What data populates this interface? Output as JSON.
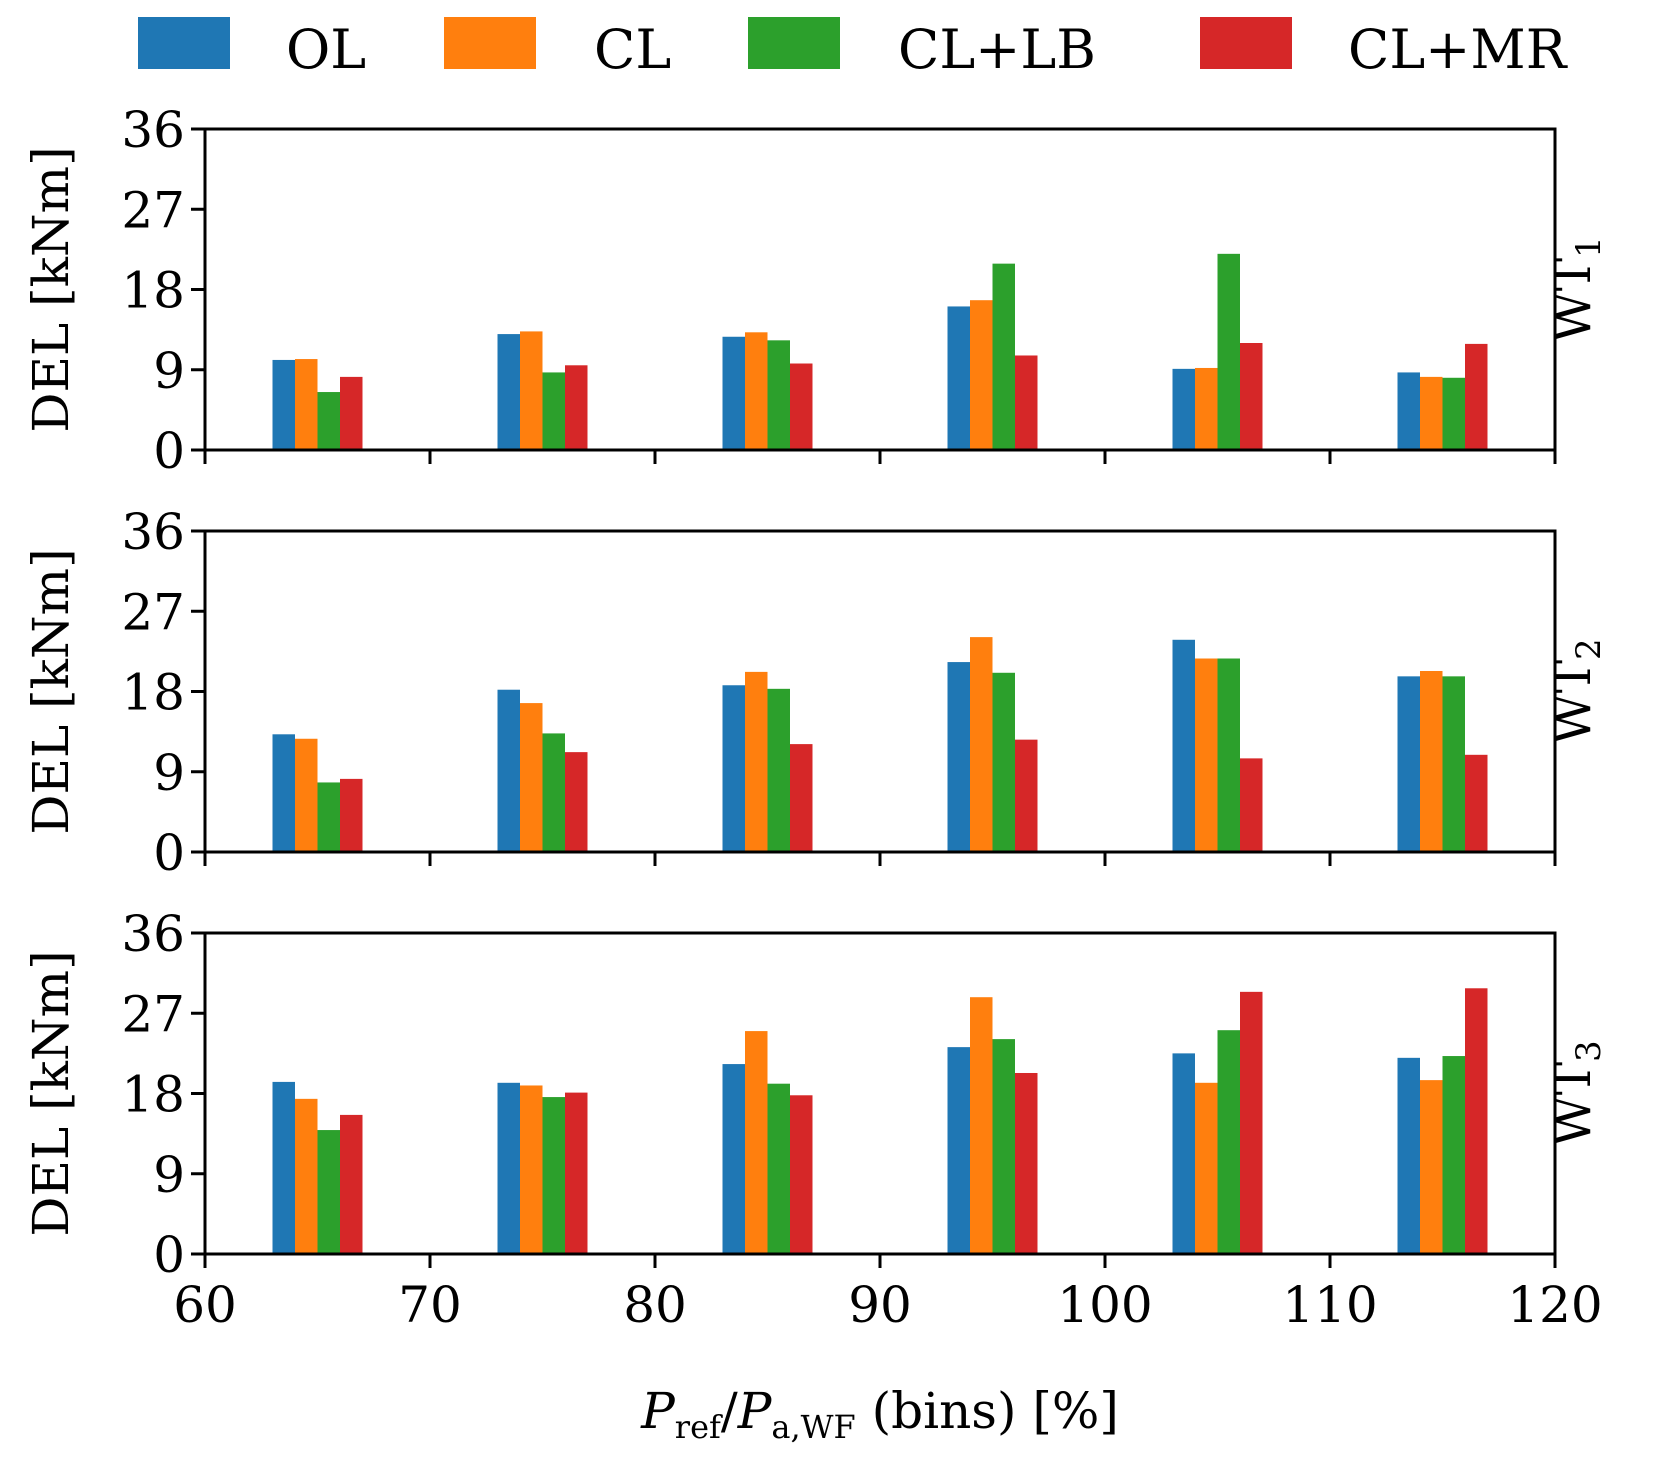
{
  "chart_data": {
    "type": "bar",
    "layout": "3 stacked subplots sharing x-axis",
    "legend": {
      "position": "top",
      "entries": [
        {
          "name": "OL",
          "color": "#1f77b4"
        },
        {
          "name": "CL",
          "color": "#ff7f0e"
        },
        {
          "name": "CL+LB",
          "color": "#2ca02c"
        },
        {
          "name": "CL+MR",
          "color": "#d62728"
        }
      ]
    },
    "x": [
      65,
      75,
      85,
      95,
      105,
      115
    ],
    "xlim": [
      60,
      120
    ],
    "xticks": [
      60,
      70,
      80,
      90,
      100,
      110,
      120
    ],
    "xlabel": "P_ref / P_a,WF (bins) [%]",
    "xlabel_parts": {
      "main1": "P",
      "sub1": "ref",
      "slash": "/",
      "main2": "P",
      "sub2": "a,WF",
      "rest": " (bins) [%]"
    },
    "bar_width": 1,
    "ylim": [
      0,
      36
    ],
    "yticks": [
      0,
      9,
      18,
      27,
      36
    ],
    "ylabel": "DEL [kNm]",
    "grid": false,
    "panels": [
      {
        "title": "WT",
        "title_sub": "1",
        "series": [
          {
            "name": "OL",
            "values": [
              10.1,
              13.0,
              12.7,
              16.1,
              9.1,
              8.7
            ]
          },
          {
            "name": "CL",
            "values": [
              10.2,
              13.3,
              13.2,
              16.8,
              9.2,
              8.2
            ]
          },
          {
            "name": "CL+LB",
            "values": [
              6.5,
              8.7,
              12.3,
              20.9,
              22.0,
              8.1
            ]
          },
          {
            "name": "CL+MR",
            "values": [
              8.2,
              9.5,
              9.7,
              10.6,
              12.0,
              11.9
            ]
          }
        ]
      },
      {
        "title": "WT",
        "title_sub": "2",
        "series": [
          {
            "name": "OL",
            "values": [
              13.2,
              18.2,
              18.7,
              21.3,
              23.8,
              19.7
            ]
          },
          {
            "name": "CL",
            "values": [
              12.7,
              16.7,
              20.2,
              24.1,
              21.7,
              20.3
            ]
          },
          {
            "name": "CL+LB",
            "values": [
              7.8,
              13.3,
              18.3,
              20.1,
              21.7,
              19.7
            ]
          },
          {
            "name": "CL+MR",
            "values": [
              8.2,
              11.2,
              12.1,
              12.6,
              10.5,
              10.9
            ]
          }
        ]
      },
      {
        "title": "WT",
        "title_sub": "3",
        "series": [
          {
            "name": "OL",
            "values": [
              19.3,
              19.2,
              21.3,
              23.2,
              22.5,
              22.0
            ]
          },
          {
            "name": "CL",
            "values": [
              17.4,
              18.9,
              25.0,
              28.8,
              19.2,
              19.5
            ]
          },
          {
            "name": "CL+LB",
            "values": [
              13.9,
              17.6,
              19.1,
              24.1,
              25.1,
              22.2
            ]
          },
          {
            "name": "CL+MR",
            "values": [
              15.6,
              18.1,
              17.8,
              20.3,
              29.4,
              29.8
            ]
          }
        ]
      }
    ]
  }
}
